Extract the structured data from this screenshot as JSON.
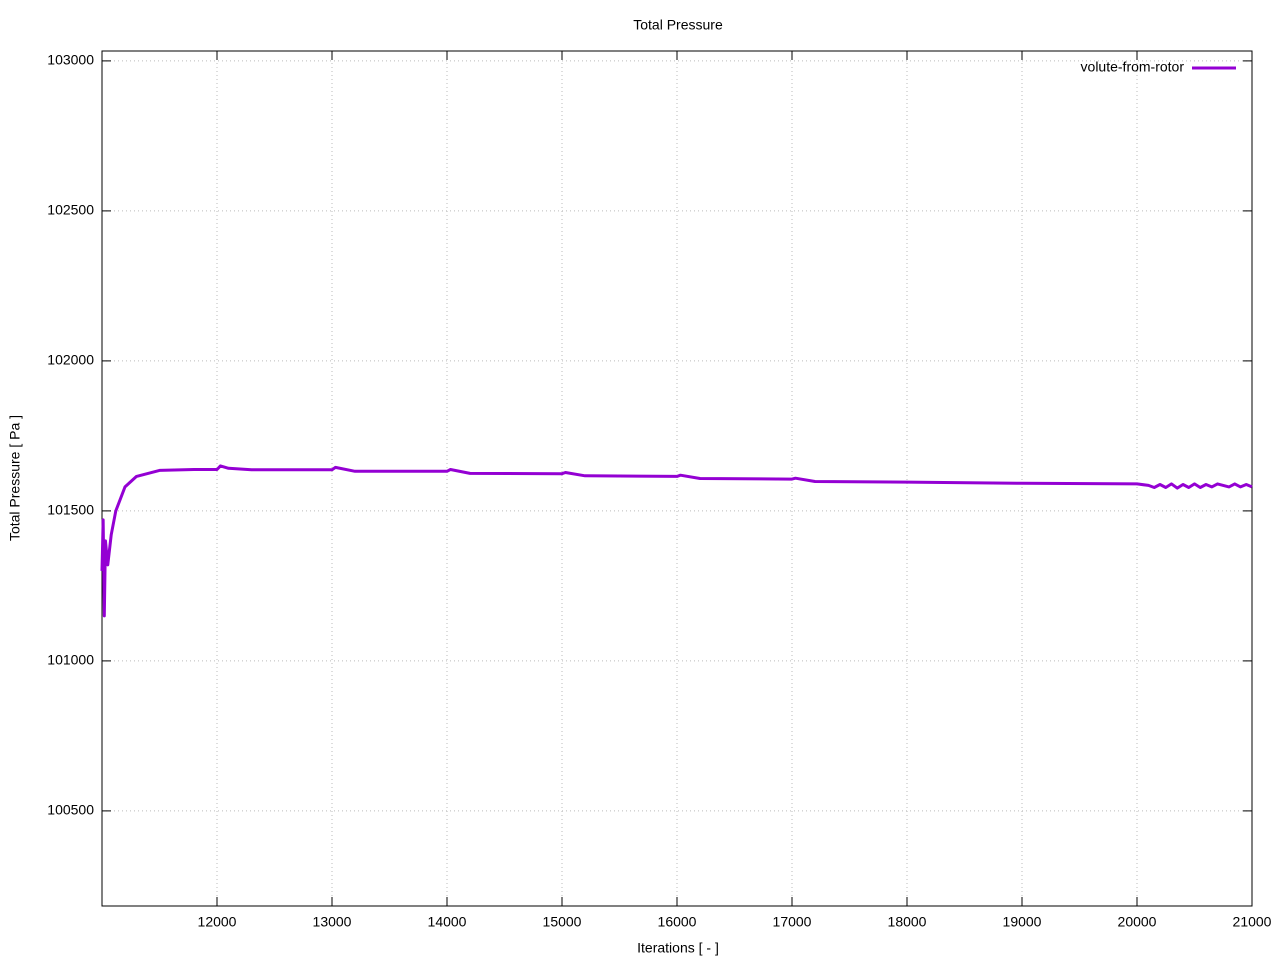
{
  "chart_data": {
    "type": "line",
    "title": "Total Pressure",
    "xlabel": "Iterations [ - ]",
    "ylabel": "Total Pressure [ Pa ]",
    "x": [
      11000,
      11010,
      11020,
      11030,
      11050,
      11080,
      11120,
      11200,
      11300,
      11500,
      11800,
      12000,
      12030,
      12100,
      12300,
      13000,
      13030,
      13200,
      14000,
      14030,
      14200,
      15000,
      15030,
      15200,
      16000,
      16030,
      16200,
      17000,
      17030,
      17200,
      18000,
      19000,
      20000,
      20100,
      20150,
      20200,
      20250,
      20300,
      20350,
      20400,
      20450,
      20500,
      20550,
      20600,
      20650,
      20700,
      20800,
      20850,
      20900,
      20950,
      21000
    ],
    "series": [
      {
        "name": "volute-from-rotor",
        "color": "#9400d3",
        "values": [
          101300,
          101470,
          101150,
          101400,
          101320,
          101420,
          101500,
          101580,
          101615,
          101635,
          101638,
          101638,
          101650,
          101642,
          101637,
          101637,
          101645,
          101632,
          101632,
          101638,
          101625,
          101624,
          101628,
          101617,
          101615,
          101619,
          101608,
          101606,
          101609,
          101598,
          101596,
          101592,
          101590,
          101585,
          101578,
          101588,
          101578,
          101590,
          101576,
          101588,
          101578,
          101590,
          101578,
          101588,
          101580,
          101590,
          101580,
          101590,
          101580,
          101588,
          101580
        ]
      }
    ],
    "xlim": [
      11000,
      21000
    ],
    "xticks": [
      12000,
      13000,
      14000,
      15000,
      16000,
      17000,
      18000,
      19000,
      20000,
      21000
    ],
    "ylim": [
      100183,
      103033
    ],
    "yticks": [
      100500,
      101000,
      101500,
      102000,
      102500,
      103000
    ],
    "grid": true,
    "legend": "top-right"
  }
}
